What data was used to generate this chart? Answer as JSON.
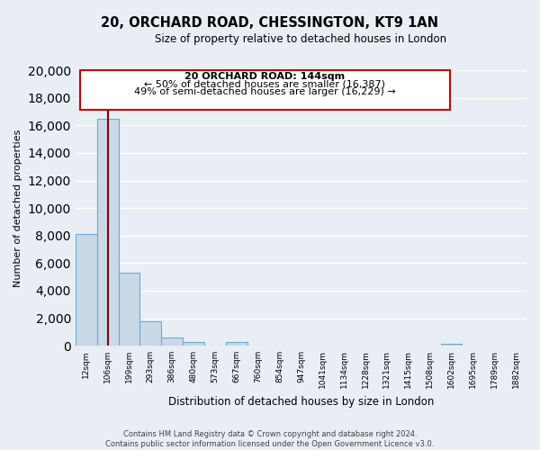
{
  "title_line1": "20, ORCHARD ROAD, CHESSINGTON, KT9 1AN",
  "title_line2": "Size of property relative to detached houses in London",
  "xlabel": "Distribution of detached houses by size in London",
  "ylabel": "Number of detached properties",
  "bin_labels": [
    "12sqm",
    "106sqm",
    "199sqm",
    "293sqm",
    "386sqm",
    "480sqm",
    "573sqm",
    "667sqm",
    "760sqm",
    "854sqm",
    "947sqm",
    "1041sqm",
    "1134sqm",
    "1228sqm",
    "1321sqm",
    "1415sqm",
    "1508sqm",
    "1602sqm",
    "1695sqm",
    "1789sqm",
    "1882sqm"
  ],
  "bar_heights": [
    8100,
    16500,
    5300,
    1750,
    600,
    250,
    0,
    250,
    0,
    0,
    0,
    0,
    0,
    0,
    0,
    0,
    0,
    150,
    0,
    0,
    0
  ],
  "bar_color": "#c9d9e8",
  "bar_edge_color": "#6aaad4",
  "property_label": "20 ORCHARD ROAD: 144sqm",
  "annotation_line1": "← 50% of detached houses are smaller (16,387)",
  "annotation_line2": "49% of semi-detached houses are larger (16,229) →",
  "marker_bin_index": 1,
  "ylim": [
    0,
    20000
  ],
  "yticks": [
    0,
    2000,
    4000,
    6000,
    8000,
    10000,
    12000,
    14000,
    16000,
    18000,
    20000
  ],
  "vline_color": "#8b0000",
  "box_edge_color": "#cc0000",
  "footer_line1": "Contains HM Land Registry data © Crown copyright and database right 2024.",
  "footer_line2": "Contains public sector information licensed under the Open Government Licence v3.0.",
  "background_color": "#e8eef4",
  "plot_bg_color": "#e8eef4"
}
